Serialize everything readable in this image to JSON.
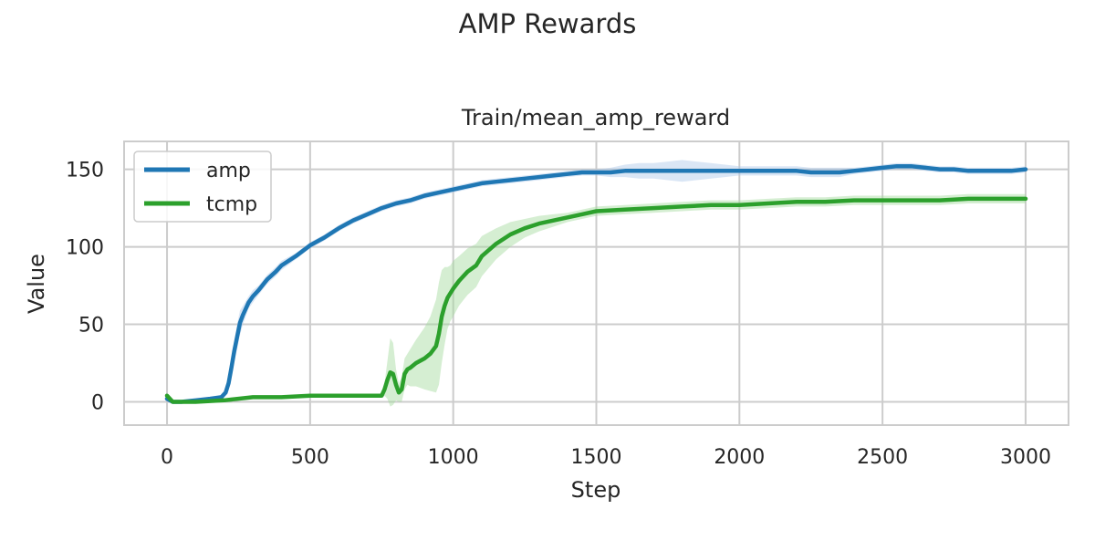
{
  "figure": {
    "suptitle": "AMP Rewards"
  },
  "chart_data": {
    "type": "line",
    "title": "Train/mean_amp_reward",
    "xlabel": "Step",
    "ylabel": "Value",
    "xlim": [
      -150,
      3150
    ],
    "ylim": [
      -15,
      168
    ],
    "xticks": [
      0,
      500,
      1000,
      1500,
      2000,
      2500,
      3000
    ],
    "yticks": [
      0,
      50,
      100,
      150
    ],
    "grid": true,
    "legend_position": "top-left",
    "series": [
      {
        "name": "amp",
        "color": "#1f77b4",
        "band_color": "#aec7e8",
        "x": [
          0,
          20,
          50,
          100,
          150,
          190,
          205,
          215,
          225,
          235,
          245,
          255,
          265,
          275,
          285,
          300,
          320,
          350,
          380,
          400,
          450,
          500,
          550,
          600,
          650,
          700,
          750,
          800,
          850,
          900,
          950,
          1000,
          1050,
          1100,
          1150,
          1200,
          1250,
          1300,
          1350,
          1400,
          1450,
          1500,
          1550,
          1600,
          1650,
          1700,
          1750,
          1800,
          1850,
          1900,
          1950,
          2000,
          2050,
          2100,
          2150,
          2200,
          2250,
          2300,
          2350,
          2400,
          2450,
          2500,
          2550,
          2600,
          2650,
          2700,
          2750,
          2800,
          2850,
          2900,
          2950,
          3000
        ],
        "y": [
          2,
          0,
          0,
          1,
          2,
          3,
          6,
          12,
          22,
          33,
          42,
          51,
          56,
          60,
          64,
          68,
          72,
          79,
          84,
          88,
          94,
          101,
          106,
          112,
          117,
          121,
          125,
          128,
          130,
          133,
          135,
          137,
          139,
          141,
          142,
          143,
          144,
          145,
          146,
          147,
          148,
          148,
          148,
          149,
          149,
          149,
          149,
          149,
          149,
          149,
          149,
          149,
          149,
          149,
          149,
          149,
          148,
          148,
          148,
          149,
          150,
          151,
          152,
          152,
          151,
          150,
          150,
          149,
          149,
          149,
          149,
          150
        ],
        "band": [
          1,
          1,
          1,
          1,
          1,
          1,
          2,
          3,
          5,
          7,
          8,
          8,
          6,
          5,
          4,
          4,
          3,
          3,
          3,
          3,
          2,
          2,
          2,
          2,
          2,
          2,
          2,
          2,
          2,
          2,
          2,
          2,
          2,
          2,
          2,
          2,
          2,
          2,
          2,
          2,
          2,
          2,
          3,
          4,
          5,
          5,
          6,
          7,
          6,
          5,
          4,
          3,
          3,
          3,
          3,
          3,
          3,
          3,
          3,
          2,
          2,
          2,
          2,
          2,
          2,
          2,
          2,
          2,
          2,
          2,
          2,
          2
        ]
      },
      {
        "name": "tcmp",
        "color": "#2ca02c",
        "band_color": "#a1d99b",
        "x": [
          0,
          20,
          50,
          100,
          200,
          300,
          350,
          400,
          500,
          600,
          700,
          740,
          750,
          760,
          770,
          780,
          790,
          800,
          810,
          820,
          830,
          840,
          850,
          870,
          900,
          920,
          940,
          950,
          960,
          970,
          980,
          990,
          1000,
          1020,
          1050,
          1080,
          1100,
          1150,
          1200,
          1250,
          1300,
          1350,
          1400,
          1450,
          1500,
          1600,
          1700,
          1800,
          1900,
          2000,
          2100,
          2200,
          2300,
          2400,
          2500,
          2600,
          2700,
          2800,
          2900,
          3000
        ],
        "y": [
          4,
          0,
          0,
          0,
          1,
          3,
          3,
          3,
          4,
          4,
          4,
          4,
          4,
          8,
          14,
          19,
          18,
          11,
          6,
          8,
          18,
          21,
          22,
          25,
          28,
          31,
          36,
          44,
          55,
          62,
          67,
          70,
          73,
          78,
          84,
          88,
          94,
          102,
          108,
          112,
          115,
          117,
          119,
          121,
          123,
          124,
          125,
          126,
          127,
          127,
          128,
          129,
          129,
          130,
          130,
          130,
          130,
          131,
          131,
          131
        ],
        "band": [
          1,
          1,
          1,
          1,
          1,
          1,
          1,
          1,
          1,
          1,
          1,
          1,
          1,
          4,
          12,
          22,
          20,
          10,
          6,
          8,
          10,
          10,
          12,
          15,
          20,
          24,
          30,
          33,
          30,
          25,
          20,
          18,
          18,
          16,
          15,
          14,
          13,
          10,
          8,
          6,
          5,
          4,
          3,
          3,
          3,
          3,
          3,
          3,
          3,
          3,
          3,
          3,
          3,
          3,
          3,
          3,
          3,
          3,
          3,
          3
        ]
      }
    ]
  }
}
